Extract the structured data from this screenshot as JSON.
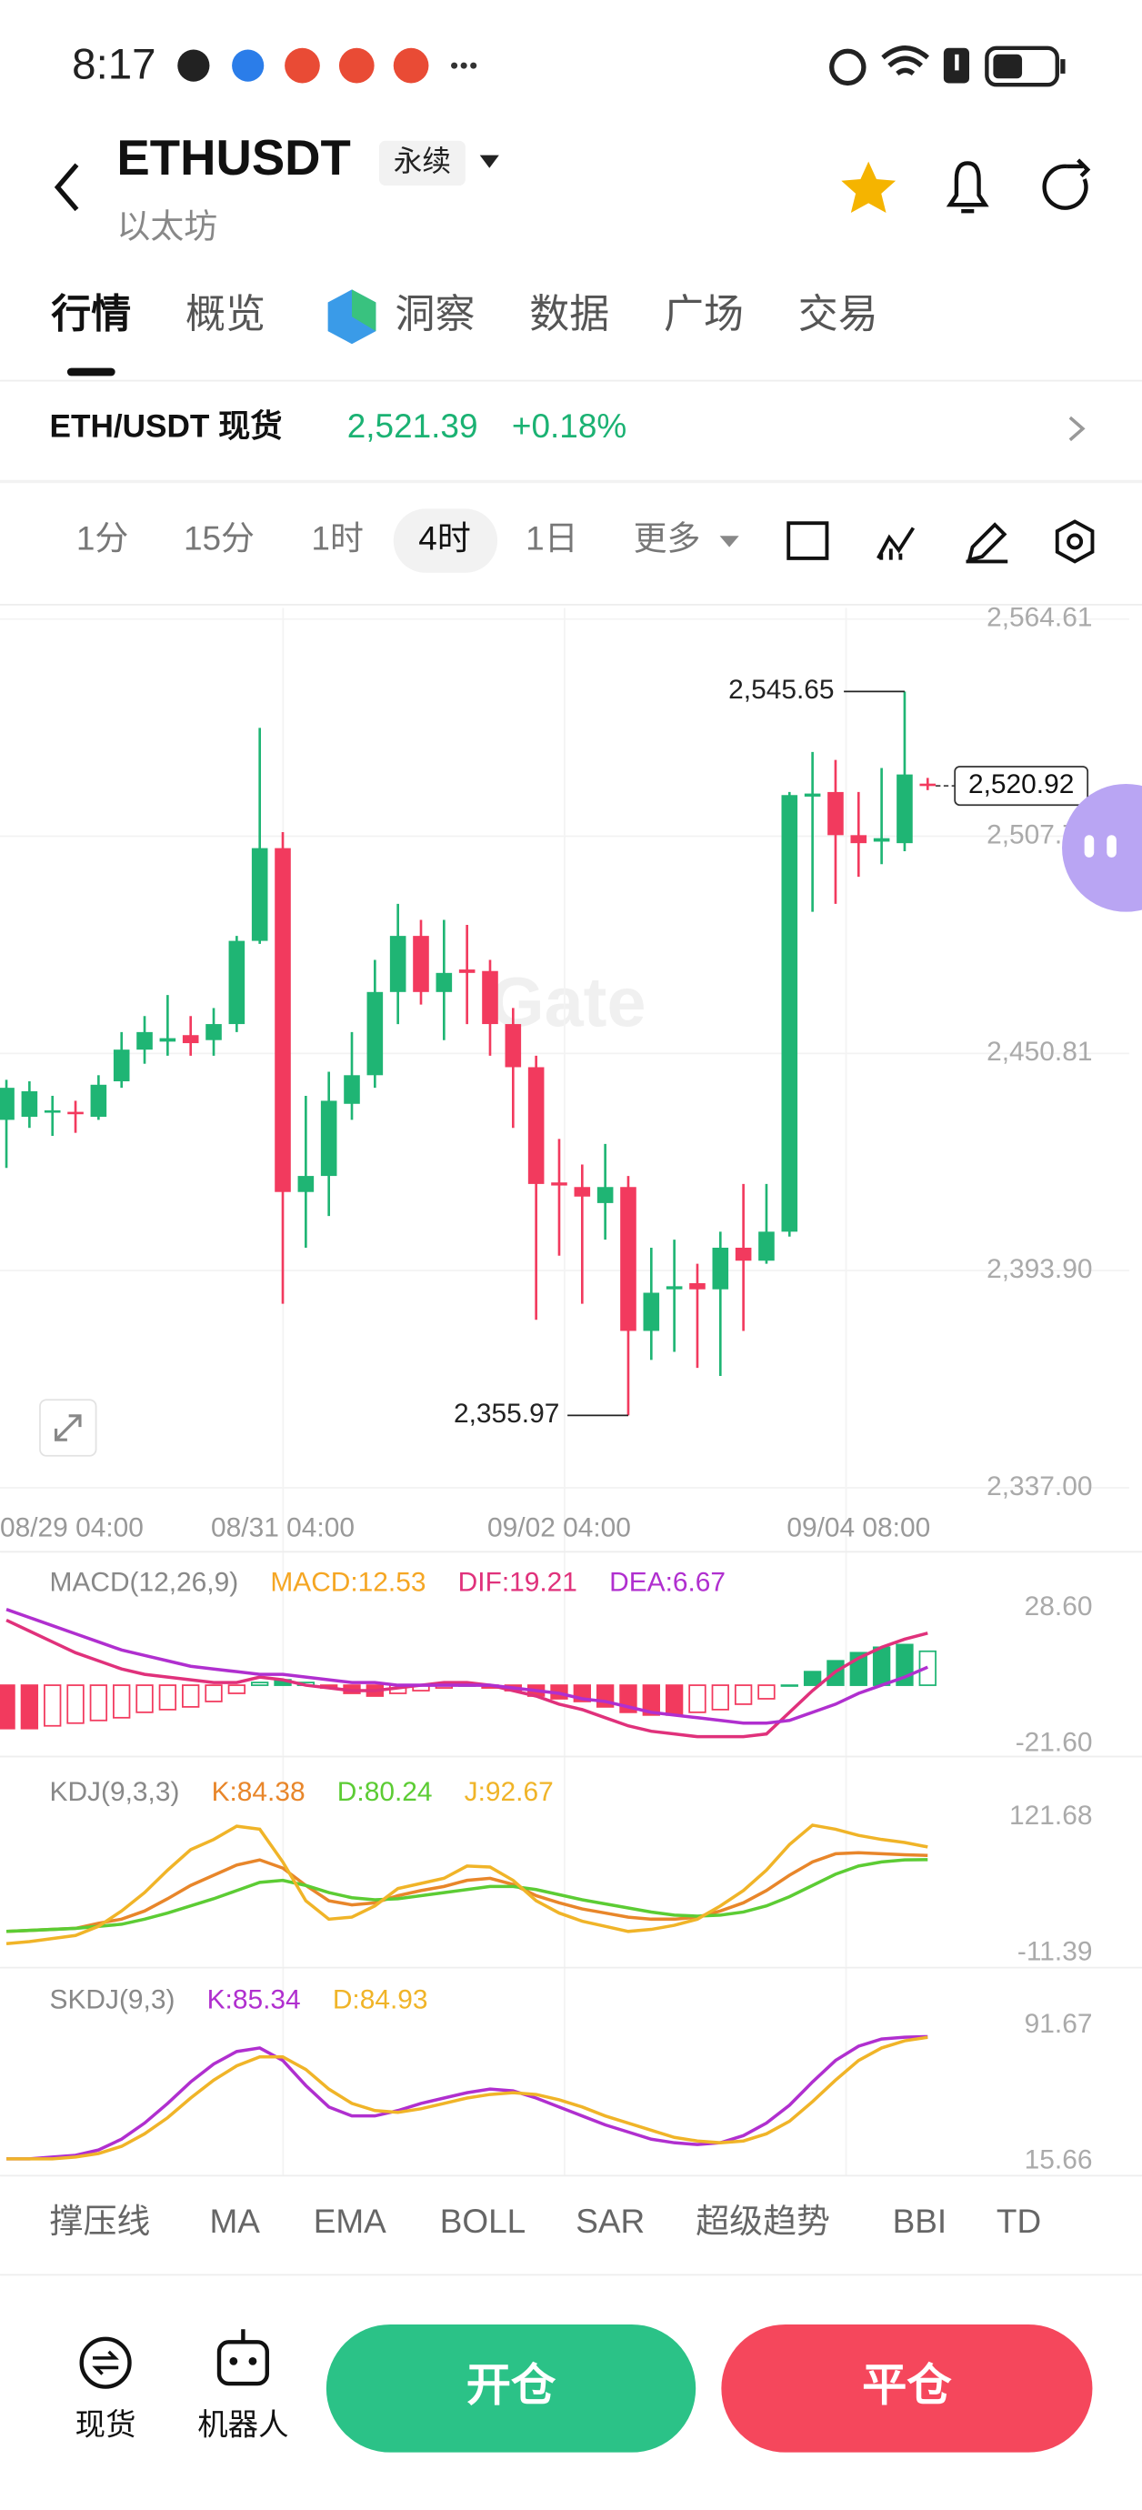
{
  "status_bar": {
    "time": "8:17"
  },
  "header": {
    "symbol": "ETHUSDT",
    "badge": "永续",
    "subtitle": "以太坊"
  },
  "tabs": [
    "行情",
    "概览",
    "洞察",
    "数据",
    "广场",
    "交易"
  ],
  "ticker": {
    "pair": "ETH/USDT 现货",
    "price": "2,521.39",
    "change": "+0.18%"
  },
  "intervals": [
    "1分",
    "15分",
    "1时",
    "4时",
    "1日",
    "更多"
  ],
  "selected_interval": 3,
  "watermark": "Gate",
  "chart_data": [
    {
      "type": "candlestick",
      "up_color": "#1fb574",
      "down_color": "#f23a5e",
      "grid": true,
      "categories": [
        "08/29 04:00",
        null,
        null,
        null,
        null,
        null,
        null,
        null,
        null,
        null,
        null,
        null,
        "08/31 04:00",
        null,
        null,
        null,
        null,
        null,
        null,
        null,
        null,
        null,
        null,
        null,
        "09/02 04:00",
        null,
        null,
        null,
        null,
        null,
        null,
        null,
        null,
        null,
        null,
        null,
        null,
        "09/04 08:00",
        null,
        null,
        null
      ],
      "open": [
        2433.4,
        2434.2,
        2435.5,
        2435.5,
        2434.2,
        2443.5,
        2451.8,
        2453.9,
        2455.6,
        2454.3,
        2458.5,
        2480.3,
        2504.6,
        2414.5,
        2418.7,
        2437.6,
        2445.1,
        2466.9,
        2481.6,
        2466.9,
        2472.8,
        2472.4,
        2458.5,
        2447.2,
        2417.0,
        2415.8,
        2411.6,
        2415.8,
        2378.1,
        2389.0,
        2390.6,
        2389.0,
        2399.9,
        2396.5,
        2404.1,
        2518.1,
        2519.3,
        2508.0,
        2506.3,
        2505.9,
        2521.5
      ],
      "high": [
        2443.9,
        2443.5,
        2439.7,
        2438.4,
        2445.1,
        2456.4,
        2460.6,
        2466.1,
        2460.6,
        2462.7,
        2481.6,
        2536.1,
        2508.8,
        2439.7,
        2446.0,
        2456.4,
        2475.3,
        2490.0,
        2485.8,
        2485.8,
        2484.5,
        2475.3,
        2462.7,
        2450.2,
        2428.4,
        2421.7,
        2427.1,
        2418.7,
        2399.9,
        2402.0,
        2395.7,
        2404.1,
        2416.6,
        2416.6,
        2519.3,
        2529.8,
        2527.7,
        2519.3,
        2525.6,
        2545.65,
        2523.0
      ],
      "low": [
        2420.8,
        2431.3,
        2429.2,
        2430.0,
        2433.4,
        2441.8,
        2448.1,
        2450.2,
        2450.2,
        2450.2,
        2456.4,
        2479.5,
        2385.2,
        2399.9,
        2408.2,
        2433.4,
        2441.8,
        2458.5,
        2463.6,
        2454.3,
        2458.5,
        2450.2,
        2431.3,
        2381.0,
        2397.8,
        2385.2,
        2402.0,
        2355.97,
        2370.5,
        2372.6,
        2368.4,
        2366.3,
        2378.1,
        2395.7,
        2402.8,
        2487.9,
        2490.0,
        2497.1,
        2500.4,
        2503.8,
        2519.8
      ],
      "close": [
        2441.8,
        2440.9,
        2435.9,
        2435.1,
        2442.6,
        2451.8,
        2456.4,
        2454.8,
        2453.5,
        2458.5,
        2480.3,
        2504.6,
        2414.5,
        2418.7,
        2438.4,
        2445.1,
        2466.9,
        2481.6,
        2466.9,
        2471.9,
        2471.9,
        2458.5,
        2447.2,
        2416.6,
        2416.2,
        2413.3,
        2415.8,
        2378.1,
        2388.1,
        2389.8,
        2389.0,
        2399.9,
        2396.5,
        2404.1,
        2518.5,
        2518.9,
        2508.0,
        2505.9,
        2507.2,
        2523.9,
        2520.92
      ],
      "ylim": [
        2337.0,
        2564.61
      ],
      "yticks": [
        {
          "value": 2564.61,
          "label": "2,564.61"
        },
        {
          "value": 2507.71,
          "label": "2,507.71"
        },
        {
          "value": 2450.81,
          "label": "2,450.81"
        },
        {
          "value": 2393.9,
          "label": "2,393.90"
        },
        {
          "value": 2337.0,
          "label": "2,337.00"
        }
      ],
      "max_label": "2,545.65",
      "min_label": "2,355.97",
      "last_price": {
        "value": 2520.92,
        "label": "2,520.92"
      }
    },
    {
      "type": "macd",
      "title": "MACD(12,26,9)",
      "up_color": "#1fb574",
      "down_color": "#f23a5e",
      "ylim": [
        -21.6,
        28.6
      ],
      "yticks": [
        {
          "value": 28.6,
          "label": "28.60"
        },
        {
          "value": -21.6,
          "label": "-21.60"
        }
      ],
      "series": [
        {
          "name": "MACD:12.53",
          "color": "#f5a623",
          "values": [
            -16,
            -16,
            -15,
            -14,
            -13,
            -12,
            -10,
            -9,
            -8,
            -6,
            -3,
            1,
            2,
            1,
            -1,
            -3,
            -4,
            -3,
            -2,
            -1,
            0,
            -1,
            -2,
            -4,
            -5,
            -6,
            -8,
            -10,
            -11,
            -11,
            -10,
            -9,
            -7,
            -5,
            0,
            5,
            9,
            12,
            14,
            15,
            12.53
          ]
        },
        {
          "name": "DIF:19.21",
          "color": "#e0317b",
          "values": [
            24,
            20,
            16,
            12,
            9,
            6,
            4,
            3,
            2,
            1,
            1,
            3,
            2,
            0,
            -1,
            -2,
            -2,
            -1,
            0,
            1,
            1,
            0,
            -2,
            -4,
            -7,
            -9,
            -12,
            -15,
            -17,
            -18,
            -19,
            -19,
            -19,
            -18,
            -10,
            -2,
            5,
            10,
            14,
            17,
            19.21
          ]
        },
        {
          "name": "DEA:6.67",
          "color": "#b02fcf",
          "values": [
            28,
            25,
            22,
            19,
            16,
            13,
            11,
            9,
            7,
            6,
            5,
            4,
            4,
            3,
            2,
            1,
            1,
            0,
            0,
            0,
            0,
            0,
            -1,
            -2,
            -3,
            -5,
            -6,
            -8,
            -10,
            -11,
            -12,
            -13,
            -14,
            -14,
            -13,
            -10,
            -7,
            -3,
            0,
            3,
            6.67
          ]
        }
      ]
    },
    {
      "type": "kdj",
      "title": "KDJ(9,3,3)",
      "ylim": [
        -11.39,
        121.68
      ],
      "yticks": [
        {
          "value": 121.68,
          "label": "121.68"
        },
        {
          "value": -11.39,
          "label": "-11.39"
        }
      ],
      "series": [
        {
          "name": "K:84.38",
          "color": "#e8862a",
          "values": [
            10,
            11,
            12,
            13,
            18,
            22,
            30,
            42,
            55,
            65,
            75,
            80,
            72,
            55,
            40,
            36,
            38,
            45,
            50,
            54,
            60,
            62,
            56,
            45,
            38,
            32,
            28,
            24,
            22,
            22,
            24,
            30,
            38,
            50,
            65,
            78,
            86,
            87,
            86,
            85,
            84.38
          ]
        },
        {
          "name": "D:80.24",
          "color": "#5ccc34",
          "values": [
            10,
            11,
            12,
            13,
            15,
            17,
            22,
            28,
            35,
            42,
            50,
            58,
            60,
            55,
            48,
            43,
            41,
            42,
            45,
            48,
            51,
            54,
            54,
            51,
            46,
            41,
            37,
            33,
            29,
            26,
            25,
            26,
            29,
            35,
            44,
            55,
            66,
            74,
            78,
            80,
            80.24
          ]
        },
        {
          "name": "J:92.67",
          "color": "#f0b428",
          "values": [
            -2,
            0,
            3,
            6,
            15,
            30,
            48,
            70,
            90,
            100,
            113,
            110,
            78,
            40,
            22,
            24,
            35,
            52,
            57,
            62,
            74,
            73,
            60,
            40,
            28,
            20,
            15,
            10,
            12,
            16,
            22,
            35,
            50,
            70,
            95,
            114,
            110,
            104,
            100,
            97,
            92.67
          ]
        }
      ]
    },
    {
      "type": "kdj",
      "title": "SKDJ(9,3)",
      "ylim": [
        15.66,
        91.67
      ],
      "yticks": [
        {
          "value": 91.67,
          "label": "91.67"
        },
        {
          "value": 15.66,
          "label": "15.66"
        }
      ],
      "series": [
        {
          "name": "K:85.34",
          "color": "#b02fcf",
          "values": [
            17,
            17,
            18,
            19,
            22,
            28,
            37,
            48,
            60,
            70,
            77,
            79,
            72,
            58,
            46,
            41,
            41,
            44,
            48,
            51,
            54,
            56,
            55,
            51,
            46,
            41,
            36,
            32,
            28,
            26,
            25,
            26,
            30,
            37,
            47,
            60,
            72,
            80,
            84,
            85,
            85.34
          ]
        },
        {
          "name": "D:84.93",
          "color": "#f0b428",
          "values": [
            17,
            17,
            17,
            18,
            20,
            24,
            31,
            40,
            51,
            61,
            69,
            74,
            74,
            67,
            56,
            48,
            44,
            43,
            45,
            48,
            51,
            53,
            54,
            53,
            50,
            46,
            41,
            37,
            33,
            29,
            27,
            26,
            27,
            31,
            38,
            49,
            61,
            72,
            79,
            83,
            84.93
          ]
        }
      ]
    }
  ],
  "indicator_tabs": [
    "撑压线",
    "MA",
    "EMA",
    "BOLL",
    "SAR",
    "超级趋势",
    "BBI",
    "TD"
  ],
  "footer": {
    "spot": "现货",
    "bot": "机器人",
    "open": "开仓",
    "close": "平仓"
  }
}
